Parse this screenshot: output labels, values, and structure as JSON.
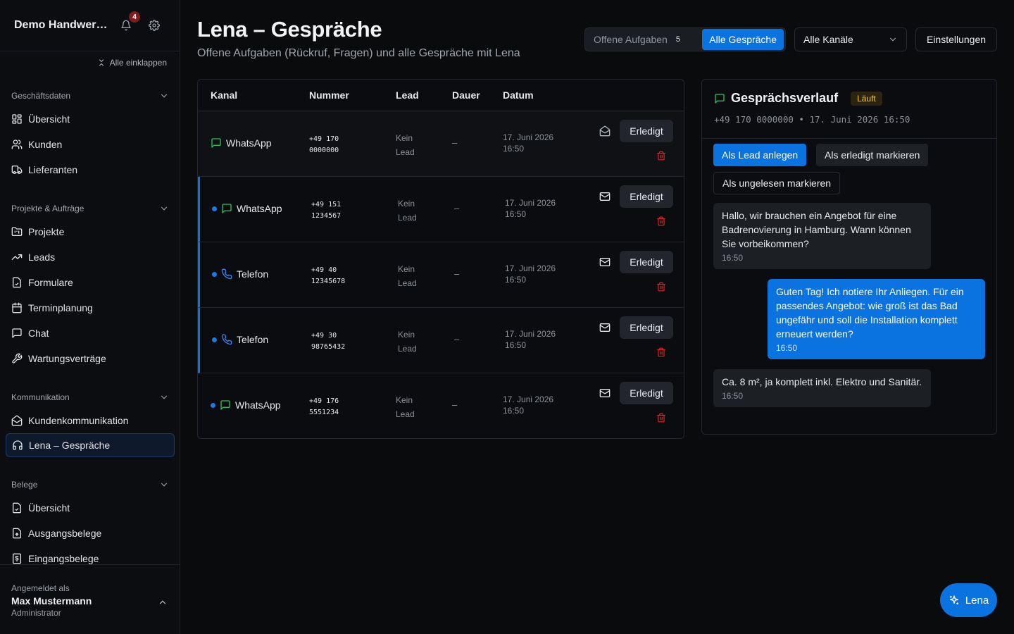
{
  "app": {
    "title": "Demo Handwerker",
    "notification_count": "4"
  },
  "sidebar": {
    "collapse_all": "Alle einklappen",
    "sections": [
      {
        "title": "Geschäftsdaten",
        "items": [
          {
            "label": "Übersicht",
            "icon": "dashboard-icon"
          },
          {
            "label": "Kunden",
            "icon": "users-icon"
          },
          {
            "label": "Lieferanten",
            "icon": "truck-icon"
          }
        ]
      },
      {
        "title": "Projekte & Aufträge",
        "items": [
          {
            "label": "Projekte",
            "icon": "folder-icon"
          },
          {
            "label": "Leads",
            "icon": "trending-up-icon"
          },
          {
            "label": "Formulare",
            "icon": "file-check-icon"
          },
          {
            "label": "Terminplanung",
            "icon": "calendar-icon"
          },
          {
            "label": "Chat",
            "icon": "chat-icon"
          },
          {
            "label": "Wartungsverträge",
            "icon": "wrench-icon"
          }
        ]
      },
      {
        "title": "Kommunikation",
        "items": [
          {
            "label": "Kundenkommunikation",
            "icon": "mail-open-icon"
          },
          {
            "label": "Lena – Gespräche",
            "icon": "headphones-icon",
            "active": true
          }
        ]
      },
      {
        "title": "Belege",
        "items": [
          {
            "label": "Übersicht",
            "icon": "file-check-icon"
          },
          {
            "label": "Ausgangsbelege",
            "icon": "file-out-icon"
          },
          {
            "label": "Eingangsbelege",
            "icon": "receipt-icon"
          }
        ]
      }
    ],
    "footer": {
      "label": "Angemeldet als",
      "name": "Max Mustermann",
      "role": "Administrator"
    }
  },
  "page": {
    "title": "Lena – Gespräche",
    "subtitle": "Offene Aufgaben (Rückruf, Fragen) und alle Gespräche mit Lena",
    "filters": {
      "open_tasks_label": "Offene Aufgaben",
      "open_tasks_count": "5",
      "all_label": "Alle Gespräche",
      "channel_select": "Alle Kanäle",
      "settings_label": "Einstellungen"
    }
  },
  "table": {
    "headers": [
      "Kanal",
      "Nummer",
      "Lead",
      "Dauer",
      "Datum"
    ],
    "action_label": "Erledigt",
    "rows": [
      {
        "channel": "WhatsApp",
        "number_1": "+49 170",
        "number_2": "0000000",
        "lead_1": "Kein",
        "lead_2": "Lead",
        "duration": "–",
        "date_1": "17. Juni 2026",
        "date_2": "16:50",
        "unread": false
      },
      {
        "channel": "WhatsApp",
        "number_1": "+49 151",
        "number_2": "1234567",
        "lead_1": "Kein",
        "lead_2": "Lead",
        "duration": "–",
        "date_1": "17. Juni 2026",
        "date_2": "16:50",
        "unread": true
      },
      {
        "channel": "Telefon",
        "number_1": "+49 40",
        "number_2": "12345678",
        "lead_1": "Kein",
        "lead_2": "Lead",
        "duration": "–",
        "date_1": "17. Juni 2026",
        "date_2": "16:50",
        "unread": true
      },
      {
        "channel": "Telefon",
        "number_1": "+49 30",
        "number_2": "98765432",
        "lead_1": "Kein",
        "lead_2": "Lead",
        "duration": "–",
        "date_1": "17. Juni 2026",
        "date_2": "16:50",
        "unread": true
      },
      {
        "channel": "WhatsApp",
        "number_1": "+49 176",
        "number_2": "5551234",
        "lead_1": "Kein",
        "lead_2": "Lead",
        "duration": "–",
        "date_1": "17. Juni 2026",
        "date_2": "16:50",
        "unread": false
      }
    ]
  },
  "conversation": {
    "title": "Gesprächsverlauf",
    "status": "Läuft",
    "meta": "+49 170 0000000 • 17. Juni 2026 16:50",
    "actions": {
      "create_lead": "Als Lead anlegen",
      "mark_done": "Als erledigt markieren",
      "mark_unread": "Als ungelesen markieren"
    },
    "messages": [
      {
        "direction": "in",
        "text": "Hallo, wir brauchen ein Angebot für eine Badrenovierung in Hamburg. Wann können Sie vorbeikommen?",
        "time": "16:50"
      },
      {
        "direction": "out",
        "text": "Guten Tag! Ich notiere Ihr Anliegen. Für ein passendes Angebot: wie groß ist das Bad ungefähr und soll die Installation komplett erneuert werden?",
        "time": "16:50"
      },
      {
        "direction": "in",
        "text": "Ca. 8 m², ja komplett inkl. Elektro und Sanitär.",
        "time": "16:50"
      }
    ]
  },
  "fab": {
    "label": "Lena"
  },
  "colors": {
    "accent": "#0a73e0",
    "whatsapp": "#22c55e",
    "phone": "#3b82f6",
    "danger": "#dc2626",
    "status": "#f5c542"
  }
}
